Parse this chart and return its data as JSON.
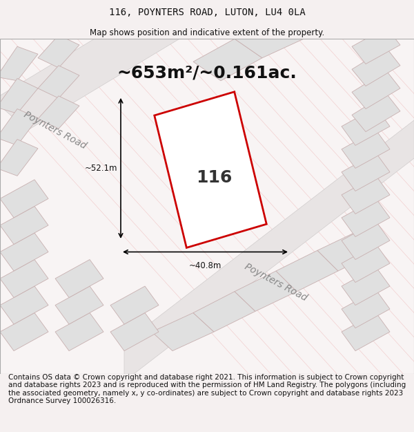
{
  "title_line1": "116, POYNTERS ROAD, LUTON, LU4 0LA",
  "title_line2": "Map shows position and indicative extent of the property.",
  "area_text": "~653m²/~0.161ac.",
  "dim_width": "~40.8m",
  "dim_height": "~52.1m",
  "label": "116",
  "road_label1": "Poynters Road",
  "road_label2": "Poynters Road",
  "footer": "Contains OS data © Crown copyright and database right 2021. This information is subject to Crown copyright and database rights 2023 and is reproduced with the permission of HM Land Registry. The polygons (including the associated geometry, namely x, y co-ordinates) are subject to Crown copyright and database rights 2023 Ordnance Survey 100026316.",
  "bg_color": "#f5f0f0",
  "map_bg": "#ffffff",
  "plot_color_fill": "#e8e8e8",
  "plot_color_stroke": "#c8c8c8",
  "road_color": "#e0e0e0",
  "highlight_fill": "none",
  "highlight_stroke": "#cc0000",
  "hatch_color": "#e8b0b0",
  "title_fontsize": 10,
  "subtitle_fontsize": 8.5,
  "footer_fontsize": 7.5
}
